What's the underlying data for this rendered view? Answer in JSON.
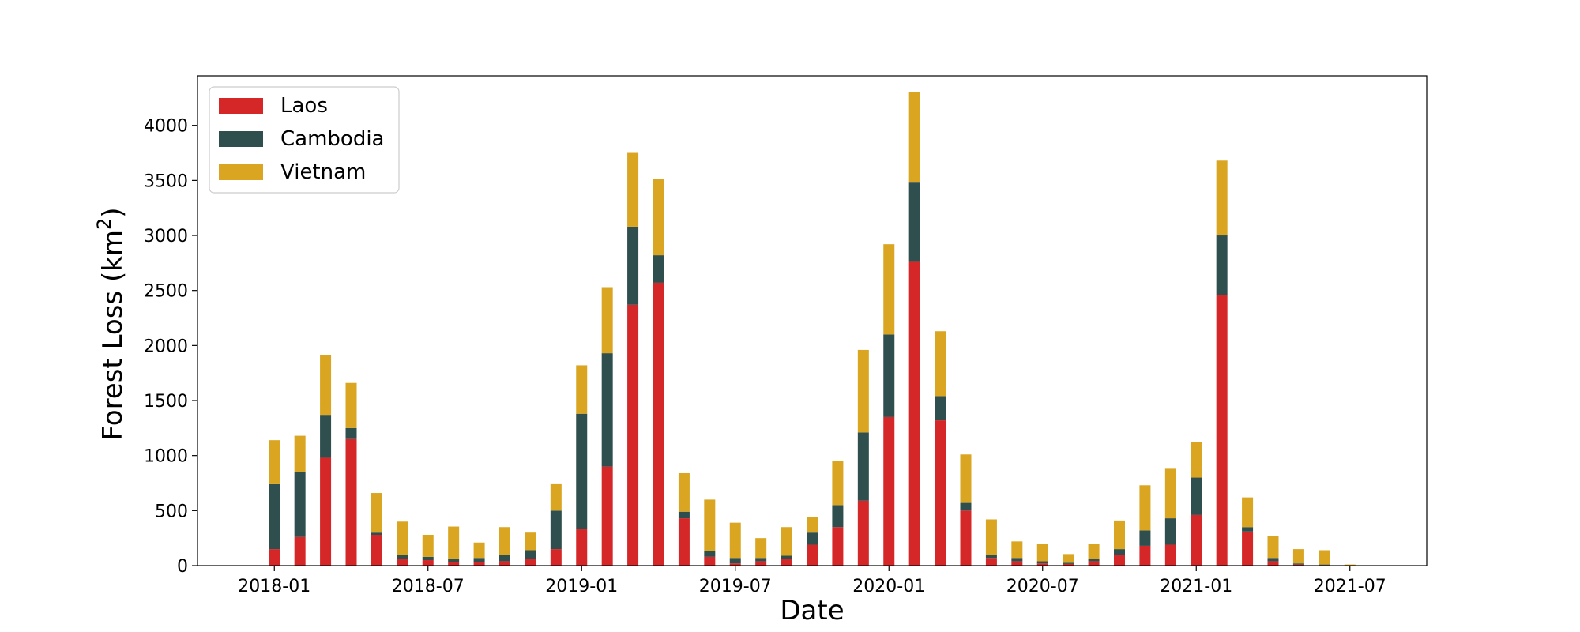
{
  "chart_data": {
    "type": "bar",
    "stacked": true,
    "xlabel": "Date",
    "ylabel": "Forest Loss (km",
    "ylabel_sup": "2",
    "ylabel_close": ")",
    "ylim": [
      0,
      4450
    ],
    "yticks": [
      0,
      500,
      1000,
      1500,
      2000,
      2500,
      3000,
      3500,
      4000
    ],
    "xticks": [
      "2018-01",
      "2018-07",
      "2019-01",
      "2019-07",
      "2020-01",
      "2020-07",
      "2021-01",
      "2021-07"
    ],
    "xlim": [
      "2017-10",
      "2021-10"
    ],
    "legend_position": "top-left",
    "grid": false,
    "categories": [
      "2018-01",
      "2018-02",
      "2018-03",
      "2018-04",
      "2018-05",
      "2018-06",
      "2018-07",
      "2018-08",
      "2018-09",
      "2018-10",
      "2018-11",
      "2018-12",
      "2019-01",
      "2019-02",
      "2019-03",
      "2019-04",
      "2019-05",
      "2019-06",
      "2019-07",
      "2019-08",
      "2019-09",
      "2019-10",
      "2019-11",
      "2019-12",
      "2020-01",
      "2020-02",
      "2020-03",
      "2020-04",
      "2020-05",
      "2020-06",
      "2020-07",
      "2020-08",
      "2020-09",
      "2020-10",
      "2020-11",
      "2020-12",
      "2021-01",
      "2021-02",
      "2021-03",
      "2021-04",
      "2021-05",
      "2021-06",
      "2021-07"
    ],
    "series": [
      {
        "name": "Laos",
        "color": "#d62728",
        "values": [
          150,
          260,
          980,
          1150,
          280,
          60,
          50,
          35,
          30,
          40,
          60,
          150,
          330,
          900,
          2370,
          2570,
          430,
          80,
          20,
          40,
          60,
          190,
          350,
          590,
          1350,
          2760,
          1320,
          500,
          70,
          40,
          20,
          15,
          40,
          100,
          180,
          190,
          460,
          2460,
          310,
          40,
          10,
          5,
          0
        ]
      },
      {
        "name": "Cambodia",
        "color": "#2f4f4f",
        "values": [
          590,
          590,
          390,
          100,
          20,
          40,
          30,
          30,
          40,
          60,
          80,
          350,
          1050,
          1030,
          710,
          250,
          60,
          50,
          50,
          30,
          30,
          110,
          200,
          620,
          750,
          720,
          220,
          70,
          30,
          30,
          20,
          10,
          20,
          50,
          140,
          240,
          340,
          540,
          40,
          30,
          10,
          5,
          2
        ]
      },
      {
        "name": "Vietnam",
        "color": "#daa520",
        "values": [
          400,
          330,
          540,
          410,
          360,
          300,
          200,
          290,
          140,
          250,
          160,
          240,
          440,
          600,
          670,
          690,
          350,
          470,
          320,
          180,
          260,
          140,
          400,
          750,
          820,
          820,
          590,
          440,
          320,
          150,
          160,
          80,
          140,
          260,
          410,
          450,
          320,
          680,
          270,
          200,
          130,
          130,
          8
        ]
      }
    ]
  }
}
